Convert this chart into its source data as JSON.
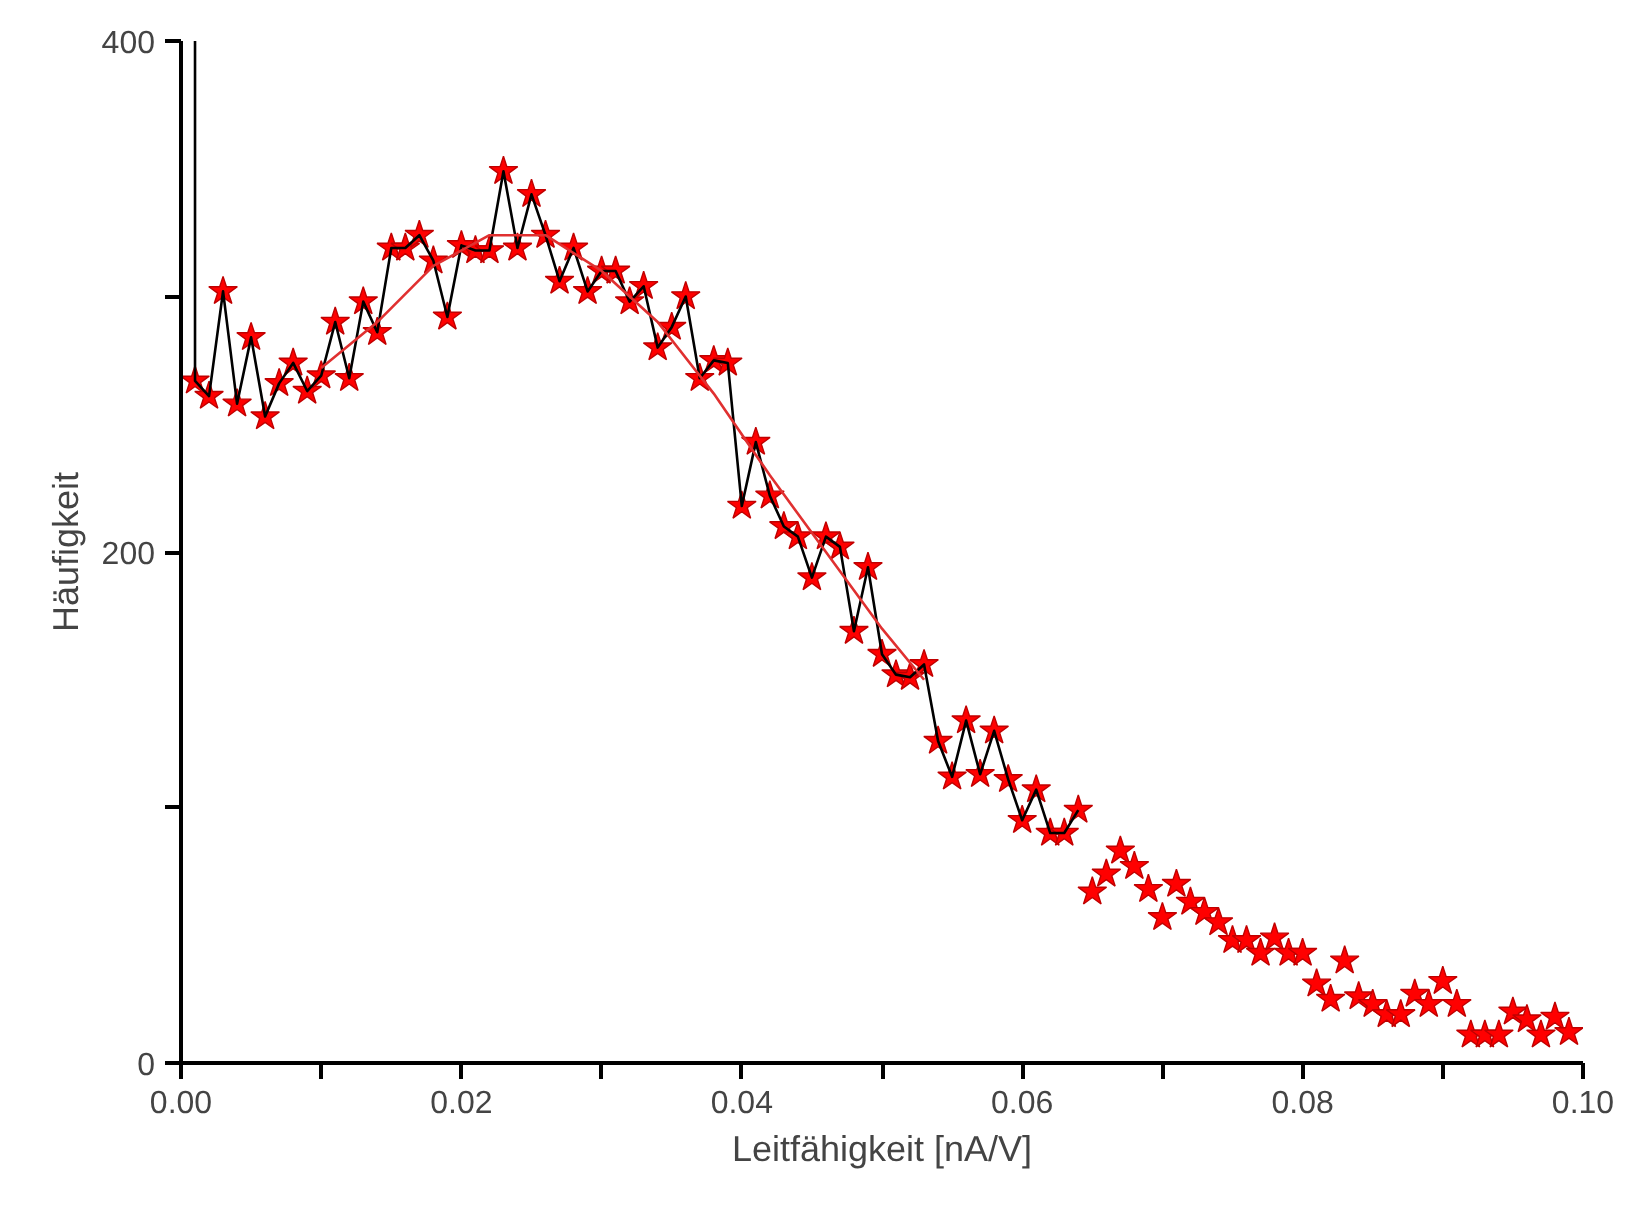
{
  "chart_data": {
    "type": "scatter",
    "xlabel": "Leitfähigkeit [nA/V]",
    "ylabel": "Häufigkeit",
    "xlim": [
      0,
      0.1
    ],
    "ylim": [
      0,
      400
    ],
    "xticks": [
      {
        "value": 0,
        "label": "0.00"
      },
      {
        "value": 0.01,
        "label": null
      },
      {
        "value": 0.02,
        "label": "0.02"
      },
      {
        "value": 0.03,
        "label": null
      },
      {
        "value": 0.04,
        "label": "0.04"
      },
      {
        "value": 0.05,
        "label": null
      },
      {
        "value": 0.06,
        "label": "0.06"
      },
      {
        "value": 0.07,
        "label": null
      },
      {
        "value": 0.08,
        "label": "0.08"
      },
      {
        "value": 0.09,
        "label": null
      },
      {
        "value": 0.1,
        "label": "0.10"
      }
    ],
    "yticks": [
      0,
      {
        "value": 100,
        "label": null
      },
      200,
      {
        "value": 300,
        "label": null
      },
      400
    ],
    "grid": false,
    "series": [
      {
        "type": "line",
        "color": "#000000",
        "line_style": "solid",
        "marker": "none",
        "x": [
          0.001,
          0.001,
          0.002,
          0.003,
          0.004,
          0.005,
          0.006,
          0.007,
          0.008,
          0.009,
          0.01,
          0.011,
          0.012,
          0.013,
          0.014,
          0.015,
          0.016,
          0.017,
          0.018,
          0.019,
          0.02,
          0.021,
          0.022,
          0.023,
          0.024,
          0.025,
          0.026,
          0.027,
          0.028,
          0.029,
          0.03,
          0.031,
          0.032,
          0.033,
          0.034,
          0.035,
          0.036,
          0.037,
          0.038,
          0.039,
          0.04,
          0.041,
          0.042,
          0.043,
          0.044,
          0.045,
          0.046,
          0.047,
          0.048,
          0.049,
          0.05,
          0.051,
          0.052,
          0.053,
          0.054,
          0.055,
          0.056,
          0.057,
          0.058,
          0.059,
          0.06,
          0.061,
          0.062,
          0.063,
          0.064
        ],
        "values": [
          400,
          267,
          261,
          302,
          258,
          284,
          253,
          266,
          274,
          263,
          269,
          290,
          268,
          298,
          286,
          319,
          319,
          324,
          314,
          292,
          320,
          318,
          318,
          349,
          319,
          340,
          324,
          306,
          319,
          302,
          310,
          310,
          298,
          304,
          280,
          288,
          300,
          268,
          275,
          274,
          218,
          243,
          222,
          210,
          206,
          190,
          206,
          202,
          169,
          194,
          160,
          152,
          151,
          156,
          126,
          112,
          134,
          113,
          130,
          111,
          95,
          107,
          90,
          90,
          99
        ]
      },
      {
        "color": "#ff0000",
        "marker": "star",
        "x": [
          0.001,
          0.002,
          0.003,
          0.004,
          0.005,
          0.006,
          0.007,
          0.008,
          0.009,
          0.01,
          0.011,
          0.012,
          0.013,
          0.014,
          0.015,
          0.016,
          0.017,
          0.018,
          0.019,
          0.02,
          0.021,
          0.022,
          0.023,
          0.024,
          0.025,
          0.026,
          0.027,
          0.028,
          0.029,
          0.03,
          0.031,
          0.032,
          0.033,
          0.034,
          0.035,
          0.036,
          0.037,
          0.038,
          0.039,
          0.04,
          0.041,
          0.042,
          0.043,
          0.044,
          0.045,
          0.046,
          0.047,
          0.048,
          0.049,
          0.05,
          0.051,
          0.052,
          0.053,
          0.054,
          0.055,
          0.056,
          0.057,
          0.058,
          0.059,
          0.06,
          0.061,
          0.062,
          0.063,
          0.064,
          0.065,
          0.066,
          0.067,
          0.068,
          0.069,
          0.07,
          0.071,
          0.072,
          0.073,
          0.074,
          0.075,
          0.076,
          0.077,
          0.078,
          0.079,
          0.08,
          0.081,
          0.082,
          0.083,
          0.084,
          0.085,
          0.086,
          0.087,
          0.088,
          0.089,
          0.09,
          0.091,
          0.092,
          0.093,
          0.094,
          0.095,
          0.096,
          0.097,
          0.098,
          0.099
        ],
        "values": [
          267,
          261,
          302,
          258,
          284,
          253,
          266,
          274,
          263,
          269,
          290,
          268,
          298,
          286,
          319,
          319,
          324,
          314,
          292,
          320,
          318,
          318,
          349,
          319,
          340,
          324,
          306,
          319,
          302,
          310,
          310,
          298,
          304,
          280,
          288,
          300,
          268,
          275,
          274,
          218,
          243,
          222,
          210,
          206,
          190,
          206,
          202,
          169,
          194,
          160,
          152,
          151,
          156,
          126,
          112,
          134,
          113,
          130,
          111,
          95,
          107,
          90,
          90,
          99,
          67,
          74,
          83,
          77,
          68,
          57,
          70,
          63,
          59,
          55,
          48,
          48,
          43,
          49,
          43,
          43,
          31,
          25,
          40,
          26,
          23,
          19,
          19,
          27,
          23,
          32,
          23,
          11,
          11,
          11,
          20,
          17,
          11,
          18,
          12
        ]
      },
      {
        "type": "line",
        "color": "#e03030",
        "line_style": "solid",
        "marker": "none",
        "x": [
          0.01,
          0.014,
          0.018,
          0.022,
          0.026,
          0.03,
          0.034,
          0.038,
          0.042,
          0.046,
          0.05,
          0.053
        ],
        "values": [
          272,
          290,
          312,
          324,
          324,
          310,
          290,
          262,
          230,
          200,
          170,
          150
        ]
      }
    ]
  }
}
